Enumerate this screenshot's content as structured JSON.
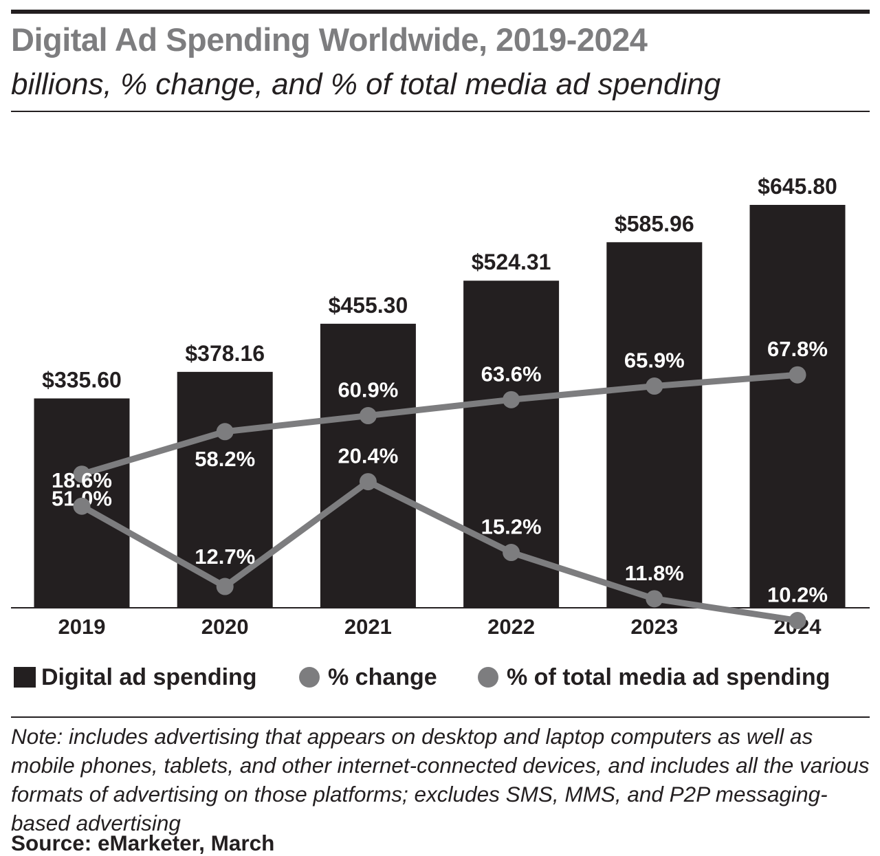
{
  "header": {
    "title": "Digital Ad Spending Worldwide, 2019-2024",
    "subtitle": "billions, % change, and % of total media ad spending"
  },
  "legend": {
    "bars": "Digital ad spending",
    "change": "% change",
    "share": "% of total media ad spending"
  },
  "footer": {
    "note": "Note: includes advertising that appears on desktop and laptop computers as well as mobile phones, tablets, and other internet-connected devices, and includes all the various formats of advertising on those platforms; excludes SMS, MMS, and P2P messaging-based advertising",
    "source": "Source: eMarketer, March"
  },
  "colors": {
    "bar": "#231f20",
    "line": "#7d7d7f",
    "label_on_bar": "#ffffff"
  },
  "chart_data": {
    "type": "bar",
    "categories": [
      "2019",
      "2020",
      "2021",
      "2022",
      "2023",
      "2024"
    ],
    "title": "Digital Ad Spending Worldwide, 2019-2024",
    "subtitle": "billions, % change, and % of total media ad spending",
    "ylim": [
      0,
      650
    ],
    "grid": false,
    "legend_position": "bottom",
    "series": [
      {
        "name": "Digital ad spending",
        "kind": "bar",
        "values": [
          335.6,
          378.16,
          455.3,
          524.31,
          585.96,
          645.8
        ],
        "labels": [
          "$335.60",
          "$378.16",
          "$455.30",
          "$524.31",
          "$585.96",
          "$645.80"
        ]
      },
      {
        "name": "% change",
        "kind": "line",
        "values": [
          18.6,
          12.7,
          20.4,
          15.2,
          11.8,
          10.2
        ],
        "labels": [
          "18.6%",
          "12.7%",
          "20.4%",
          "15.2%",
          "11.8%",
          "10.2%"
        ]
      },
      {
        "name": "% of total media ad spending",
        "kind": "line",
        "values": [
          51.0,
          58.2,
          60.9,
          63.6,
          65.9,
          67.8
        ],
        "labels": [
          "51.0%",
          "58.2%",
          "60.9%",
          "63.6%",
          "65.9%",
          "67.8%"
        ]
      }
    ]
  }
}
